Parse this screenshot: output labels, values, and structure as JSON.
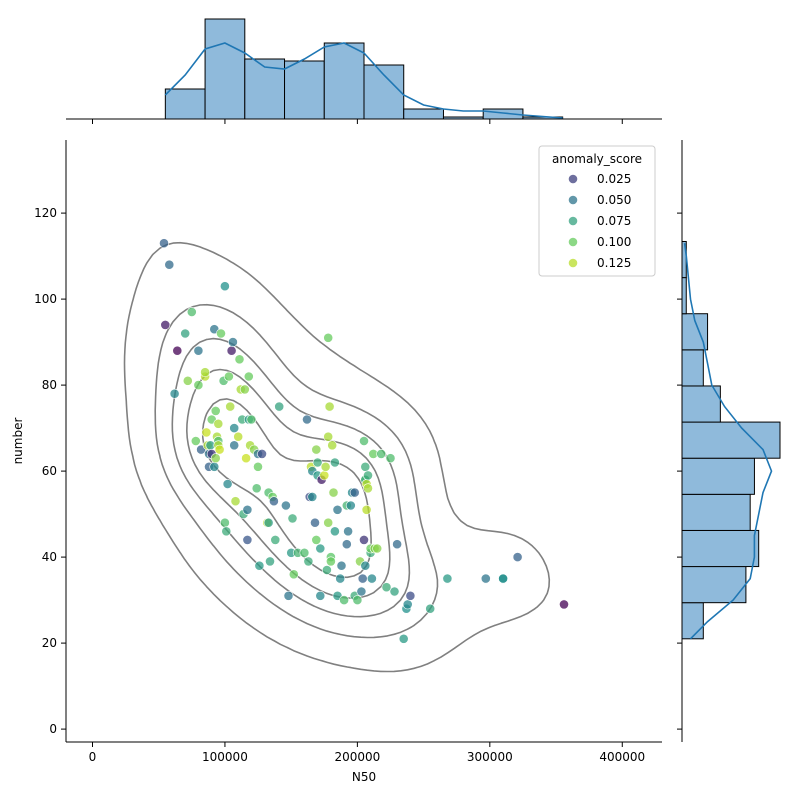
{
  "chart_data": {
    "type": "scatter",
    "xlabel": "N50",
    "ylabel": "number",
    "xlim": [
      -20000,
      430000
    ],
    "ylim": [
      -3,
      137
    ],
    "xticks": [
      0,
      100000,
      200000,
      300000,
      400000
    ],
    "yticks": [
      0,
      20,
      40,
      60,
      80,
      100,
      120
    ],
    "xtick_labels": [
      "0",
      "100000",
      "200000",
      "300000",
      "400000"
    ],
    "ytick_labels": [
      "0",
      "20",
      "40",
      "60",
      "80",
      "100",
      "120"
    ],
    "legend": {
      "title": "anomaly_score",
      "placement": "top-right",
      "entries": [
        {
          "label": "0.025",
          "score": 0.025
        },
        {
          "label": "0.050",
          "score": 0.05
        },
        {
          "label": "0.075",
          "score": 0.075
        },
        {
          "label": "0.100",
          "score": 0.1
        },
        {
          "label": "0.125",
          "score": 0.125
        }
      ]
    },
    "colors": {
      "contour": "#808080",
      "hist_fill": "#8fbadb",
      "hist_edge": "#000000",
      "kde_line": "#1f77b4",
      "scale": [
        "#440154",
        "#3b528b",
        "#21918c",
        "#5ec962",
        "#c8e020"
      ]
    },
    "points": [
      [
        54000,
        113,
        0.04
      ],
      [
        58000,
        108,
        0.045
      ],
      [
        55000,
        94,
        0.01
      ],
      [
        62000,
        78,
        0.06
      ],
      [
        64000,
        88,
        0.0
      ],
      [
        70000,
        92,
        0.075
      ],
      [
        75000,
        97,
        0.09
      ],
      [
        72000,
        81,
        0.11
      ],
      [
        78000,
        67,
        0.1
      ],
      [
        80000,
        88,
        0.05
      ],
      [
        80000,
        80,
        0.1
      ],
      [
        82000,
        65,
        0.04
      ],
      [
        85000,
        82,
        0.125
      ],
      [
        85000,
        83,
        0.12
      ],
      [
        86000,
        69,
        0.13
      ],
      [
        87000,
        66,
        0.12
      ],
      [
        88000,
        64,
        0.05
      ],
      [
        88000,
        61,
        0.04
      ],
      [
        89000,
        66,
        0.07
      ],
      [
        90000,
        64,
        0.02
      ],
      [
        90000,
        72,
        0.1
      ],
      [
        92000,
        93,
        0.05
      ],
      [
        92000,
        61,
        0.06
      ],
      [
        93000,
        74,
        0.1
      ],
      [
        93000,
        63,
        0.11
      ],
      [
        94000,
        68,
        0.12
      ],
      [
        95000,
        71,
        0.12
      ],
      [
        95000,
        67,
        0.09
      ],
      [
        95000,
        66,
        0.12
      ],
      [
        96000,
        65,
        0.13
      ],
      [
        97000,
        92,
        0.1
      ],
      [
        99000,
        81,
        0.09
      ],
      [
        100000,
        48,
        0.09
      ],
      [
        100000,
        103,
        0.065
      ],
      [
        101000,
        46,
        0.08
      ],
      [
        102000,
        57,
        0.06
      ],
      [
        103000,
        82,
        0.1
      ],
      [
        104000,
        75,
        0.12
      ],
      [
        105000,
        88,
        0.01
      ],
      [
        106000,
        90,
        0.05
      ],
      [
        107000,
        70,
        0.06
      ],
      [
        107000,
        66,
        0.05
      ],
      [
        108000,
        53,
        0.12
      ],
      [
        110000,
        68,
        0.125
      ],
      [
        111000,
        86,
        0.1
      ],
      [
        112000,
        79,
        0.12
      ],
      [
        113000,
        72,
        0.08
      ],
      [
        114000,
        50,
        0.08
      ],
      [
        115000,
        79,
        0.11
      ],
      [
        116000,
        63,
        0.13
      ],
      [
        117000,
        44,
        0.035
      ],
      [
        117000,
        51,
        0.05
      ],
      [
        118000,
        72,
        0.07
      ],
      [
        118000,
        82,
        0.1
      ],
      [
        119000,
        66,
        0.12
      ],
      [
        120000,
        72,
        0.09
      ],
      [
        122000,
        65,
        0.11
      ],
      [
        124000,
        56,
        0.09
      ],
      [
        125000,
        64,
        0.05
      ],
      [
        125000,
        61,
        0.1
      ],
      [
        126000,
        38,
        0.07
      ],
      [
        128000,
        64,
        0.03
      ],
      [
        132000,
        48,
        0.125
      ],
      [
        133000,
        55,
        0.09
      ],
      [
        133000,
        48,
        0.07
      ],
      [
        134000,
        39,
        0.075
      ],
      [
        136000,
        54,
        0.1
      ],
      [
        137000,
        53,
        0.04
      ],
      [
        138000,
        44,
        0.08
      ],
      [
        141000,
        75,
        0.075
      ],
      [
        146000,
        52,
        0.05
      ],
      [
        148000,
        31,
        0.05
      ],
      [
        150000,
        41,
        0.07
      ],
      [
        151000,
        49,
        0.08
      ],
      [
        152000,
        36,
        0.1
      ],
      [
        155000,
        41,
        0.085
      ],
      [
        160000,
        41,
        0.09
      ],
      [
        162000,
        72,
        0.045
      ],
      [
        163000,
        39,
        0.08
      ],
      [
        164000,
        54,
        0.03
      ],
      [
        165000,
        61,
        0.125
      ],
      [
        166000,
        54,
        0.06
      ],
      [
        166000,
        60,
        0.06
      ],
      [
        168000,
        48,
        0.04
      ],
      [
        169000,
        44,
        0.1
      ],
      [
        169000,
        65,
        0.11
      ],
      [
        170000,
        59,
        0.07
      ],
      [
        170000,
        62,
        0.08
      ],
      [
        172000,
        31,
        0.06
      ],
      [
        172000,
        42,
        0.07
      ],
      [
        173000,
        58,
        0.01
      ],
      [
        175000,
        59,
        0.13
      ],
      [
        176000,
        61,
        0.12
      ],
      [
        177000,
        37,
        0.08
      ],
      [
        178000,
        48,
        0.11
      ],
      [
        178000,
        68,
        0.12
      ],
      [
        178000,
        91,
        0.1
      ],
      [
        179000,
        75,
        0.12
      ],
      [
        180000,
        40,
        0.095
      ],
      [
        180000,
        39,
        0.1
      ],
      [
        181000,
        66,
        0.12
      ],
      [
        182000,
        55,
        0.11
      ],
      [
        183000,
        46,
        0.07
      ],
      [
        183000,
        62,
        0.075
      ],
      [
        185000,
        51,
        0.05
      ],
      [
        185000,
        31,
        0.07
      ],
      [
        187000,
        35,
        0.06
      ],
      [
        188000,
        38,
        0.05
      ],
      [
        190000,
        30,
        0.09
      ],
      [
        192000,
        43,
        0.045
      ],
      [
        192000,
        52,
        0.085
      ],
      [
        193000,
        46,
        0.05
      ],
      [
        195000,
        52,
        0.06
      ],
      [
        196000,
        55,
        0.06
      ],
      [
        198000,
        55,
        0.04
      ],
      [
        198000,
        31,
        0.08
      ],
      [
        200000,
        30,
        0.09
      ],
      [
        202000,
        39,
        0.11
      ],
      [
        203000,
        32,
        0.05
      ],
      [
        204000,
        35,
        0.04
      ],
      [
        205000,
        44,
        0.02
      ],
      [
        205000,
        67,
        0.09
      ],
      [
        206000,
        38,
        0.06
      ],
      [
        206000,
        61,
        0.08
      ],
      [
        206000,
        58,
        0.07
      ],
      [
        206000,
        58,
        0.085
      ],
      [
        207000,
        51,
        0.125
      ],
      [
        207000,
        57,
        0.125
      ],
      [
        208000,
        56,
        0.12
      ],
      [
        208000,
        59,
        0.08
      ],
      [
        210000,
        41,
        0.08
      ],
      [
        210000,
        42,
        0.1
      ],
      [
        211000,
        35,
        0.06
      ],
      [
        212000,
        64,
        0.1
      ],
      [
        213000,
        42,
        0.11
      ],
      [
        215000,
        42,
        0.11
      ],
      [
        218000,
        64,
        0.09
      ],
      [
        222000,
        33,
        0.08
      ],
      [
        225000,
        63,
        0.09
      ],
      [
        228000,
        32,
        0.075
      ],
      [
        230000,
        43,
        0.045
      ],
      [
        235000,
        21,
        0.07
      ],
      [
        237000,
        28,
        0.065
      ],
      [
        238000,
        29,
        0.06
      ],
      [
        240000,
        31,
        0.03
      ],
      [
        255000,
        28,
        0.075
      ],
      [
        268000,
        35,
        0.07
      ],
      [
        297000,
        35,
        0.05
      ],
      [
        310000,
        35,
        0.06
      ],
      [
        310000,
        35,
        0.065
      ],
      [
        321000,
        40,
        0.04
      ],
      [
        356000,
        29,
        0.0
      ]
    ],
    "marginal_x_hist": {
      "bin_edges": [
        55000,
        85000,
        115000,
        145000,
        175000,
        205000,
        235000,
        265000,
        295000,
        325000,
        355000
      ],
      "counts": [
        15,
        50,
        30,
        29,
        38,
        27,
        5,
        1,
        5,
        1
      ]
    },
    "marginal_x_kde": [
      [
        55000,
        12
      ],
      [
        70000,
        22
      ],
      [
        85000,
        35
      ],
      [
        100000,
        38
      ],
      [
        115000,
        33
      ],
      [
        130000,
        26
      ],
      [
        145000,
        25
      ],
      [
        160000,
        30
      ],
      [
        175000,
        36
      ],
      [
        190000,
        38
      ],
      [
        205000,
        33
      ],
      [
        220000,
        22
      ],
      [
        235000,
        12
      ],
      [
        250000,
        7
      ],
      [
        265000,
        5
      ],
      [
        280000,
        4
      ],
      [
        295000,
        4
      ],
      [
        310000,
        3
      ],
      [
        325000,
        2
      ],
      [
        345000,
        1
      ],
      [
        355000,
        0.5
      ]
    ],
    "marginal_y_hist": {
      "bin_edges": [
        21,
        29.4,
        37.8,
        46.2,
        54.6,
        63,
        71.4,
        79.8,
        88.2,
        96.6,
        105,
        113.4
      ],
      "counts": [
        5,
        15,
        18,
        16,
        17,
        23,
        9,
        5,
        6,
        1,
        1
      ]
    },
    "marginal_y_kde": [
      [
        21,
        2
      ],
      [
        25,
        6
      ],
      [
        30,
        12
      ],
      [
        35,
        16
      ],
      [
        40,
        17
      ],
      [
        45,
        17
      ],
      [
        50,
        18
      ],
      [
        55,
        19
      ],
      [
        60,
        21
      ],
      [
        65,
        19
      ],
      [
        70,
        14
      ],
      [
        75,
        10
      ],
      [
        80,
        7
      ],
      [
        85,
        6
      ],
      [
        90,
        5
      ],
      [
        95,
        3
      ],
      [
        100,
        2
      ],
      [
        105,
        1.5
      ],
      [
        110,
        1
      ],
      [
        113,
        0.6
      ]
    ]
  }
}
